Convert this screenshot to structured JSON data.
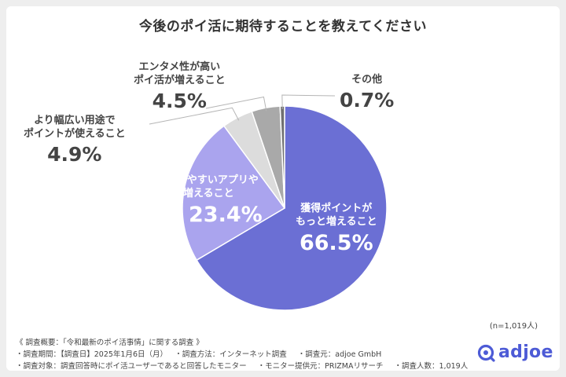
{
  "chart_data": {
    "type": "pie",
    "title": "今後のポイ活に期待することを教えてください",
    "sample_size": "(n=1,019人)",
    "slices": [
      {
        "name": "獲得ポイントがもっと増えること",
        "lines": [
          "獲得ポイントが",
          "もっと増えること"
        ],
        "value": 66.5,
        "display": "66.5%",
        "color": "#6b6fd4"
      },
      {
        "name": "簡単で使いやすいアプリやサービスが増えること",
        "lines": [
          "簡単で使いやすいアプリや",
          "サービスが増えること"
        ],
        "value": 23.4,
        "display": "23.4%",
        "color": "#aaa4ee"
      },
      {
        "name": "より幅広い用途でポイントが使えること",
        "lines": [
          "より幅広い用途で",
          "ポイントが使えること"
        ],
        "value": 4.9,
        "display": "4.9%",
        "color": "#dcdcdc"
      },
      {
        "name": "エンタメ性が高いポイ活が増えること",
        "lines": [
          "エンタメ性が高い",
          "ポイ活が増えること"
        ],
        "value": 4.5,
        "display": "4.5%",
        "color": "#a9a9a9"
      },
      {
        "name": "その他",
        "lines": [
          "その他"
        ],
        "value": 0.7,
        "display": "0.7%",
        "color": "#707070"
      }
    ]
  },
  "survey_notes": {
    "line1": "《 調査概要：「令和最新のポイ活事情」に関する調査 》",
    "line2": [
      "・調査期間：【調査日】2025年1月6日（月）",
      "・調査方法：インターネット調査",
      "・調査元：adjoe GmbH"
    ],
    "line3": [
      "・調査対象：調査回答時にポイ活ユーザーであると回答したモニター",
      "・モニター提供元：PRIZMAリサーチ",
      "・調査人数：1,019人"
    ]
  },
  "brand": {
    "name": "adjoe",
    "color": "#4d5bd6",
    "logo_icon": "adjoe-logo-icon"
  }
}
